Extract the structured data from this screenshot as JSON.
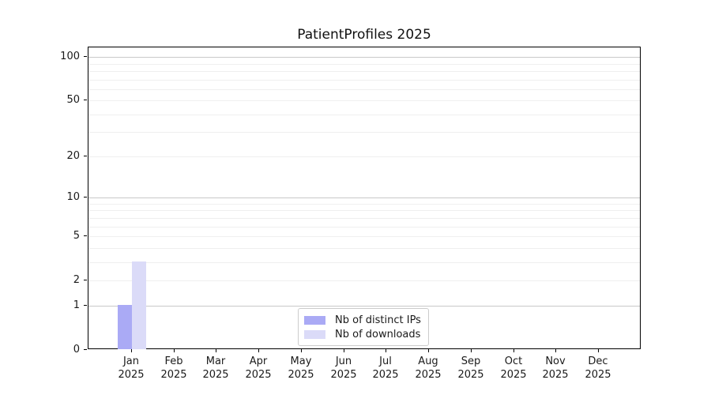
{
  "chart_data": {
    "type": "bar",
    "title": "PatientProfiles 2025",
    "categories": [
      "Jan",
      "Feb",
      "Mar",
      "Apr",
      "May",
      "Jun",
      "Jul",
      "Aug",
      "Sep",
      "Oct",
      "Nov",
      "Dec"
    ],
    "category_year": "2025",
    "series": [
      {
        "name": "Nb of distinct IPs",
        "color": "#aaaaf5",
        "values": [
          1,
          0,
          0,
          0,
          0,
          0,
          0,
          0,
          0,
          0,
          0,
          0
        ]
      },
      {
        "name": "Nb of downloads",
        "color": "#dbdbf8",
        "values": [
          3,
          0,
          0,
          0,
          0,
          0,
          0,
          0,
          0,
          0,
          0,
          0
        ]
      }
    ],
    "y_axis": {
      "scale": "log1p",
      "ticks": [
        0,
        1,
        2,
        5,
        10,
        20,
        50,
        100
      ],
      "decade_gridlines": [
        1,
        10,
        100
      ],
      "minor_gridlines": [
        3,
        4,
        6,
        7,
        8,
        9,
        30,
        40,
        60,
        70,
        80,
        90
      ]
    },
    "x_axis": {
      "label_lines": 2
    },
    "legend": {
      "position": "bottom-center"
    },
    "grid": "horizontal",
    "colors": {
      "grid_major": "#c9c9c9",
      "grid_minor": "#efefef",
      "axis": "#000000",
      "text": "#1a1a1a"
    }
  }
}
